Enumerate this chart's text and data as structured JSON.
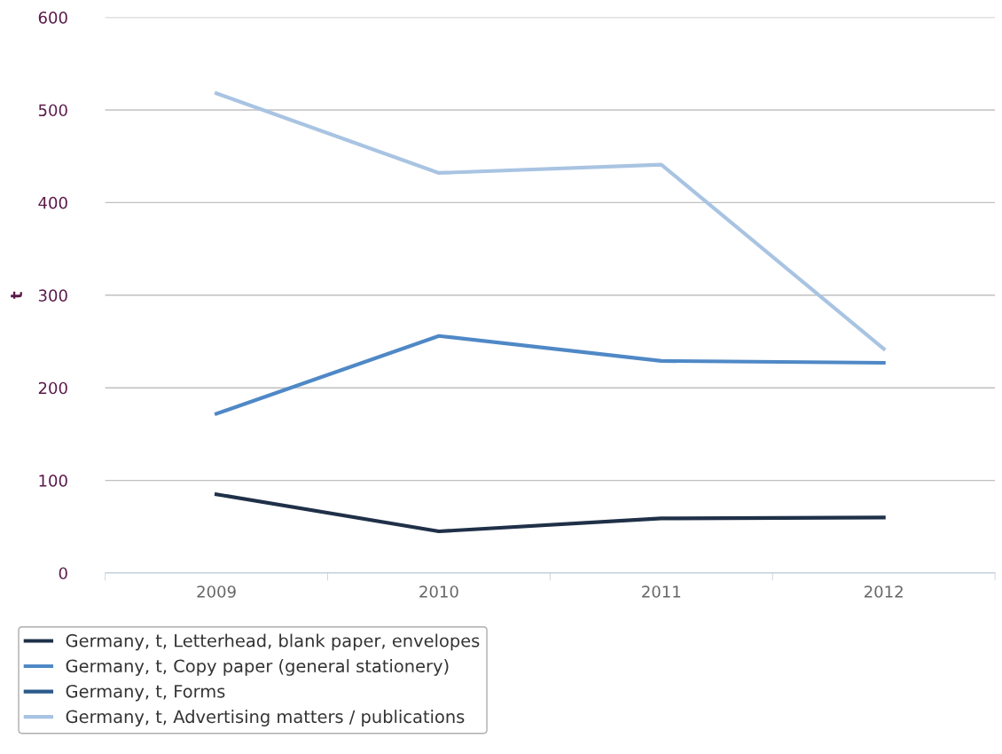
{
  "chart_data": {
    "type": "line",
    "ylabel": "t",
    "categories": [
      "2009",
      "2010",
      "2011",
      "2012"
    ],
    "series": [
      {
        "name": "Germany, t, Letterhead, blank paper, envelopes",
        "color": "#1f3048",
        "values": [
          85,
          45,
          59,
          60
        ]
      },
      {
        "name": "Germany, t, Copy paper (general stationery)",
        "color": "#4f88c6",
        "values": [
          172,
          256,
          229,
          227
        ]
      },
      {
        "name": "Germany, t, Forms",
        "color": "#2b5a8a",
        "values": [
          null,
          null,
          null,
          null
        ]
      },
      {
        "name": "Germany, t, Advertising matters / publications",
        "color": "#a9c4e2",
        "values": [
          518,
          432,
          441,
          242
        ]
      }
    ],
    "ylim": [
      0,
      600
    ],
    "yticks": [
      0,
      100,
      200,
      300,
      400,
      500,
      600
    ],
    "grid": "y",
    "legend": "bottom",
    "marker": "none",
    "line_style": "solid"
  }
}
